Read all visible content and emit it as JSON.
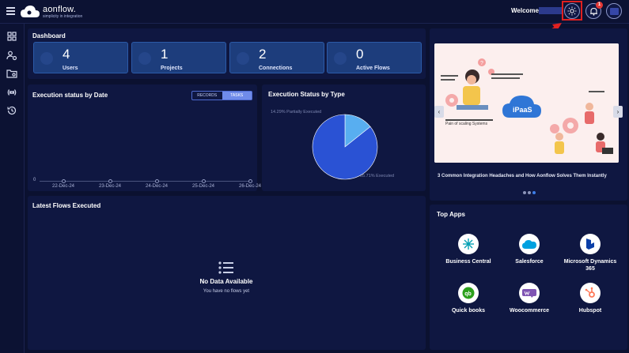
{
  "app": {
    "logo_name": "aonflow.",
    "logo_tagline": "simplicity in integration",
    "welcome": "Welcome",
    "notification_count": "1"
  },
  "dashboard": {
    "title": "Dashboard",
    "stats": [
      {
        "value": "4",
        "label": "Users",
        "icon": "users-icon"
      },
      {
        "value": "1",
        "label": "Projects",
        "icon": "folder-icon"
      },
      {
        "value": "2",
        "label": "Connections",
        "icon": "connection-icon"
      },
      {
        "value": "0",
        "label": "Active Flows",
        "icon": "shuffle-icon"
      }
    ]
  },
  "execution_by_date": {
    "title": "Execution status by Date",
    "toggle": [
      "RECORDS",
      "TASKS"
    ],
    "active_toggle": "TASKS",
    "zero_label": "0",
    "dates": [
      "22-Dec-24",
      "23-Dec-24",
      "24-Dec-24",
      "25-Dec-24",
      "26-Dec-24"
    ]
  },
  "execution_by_type": {
    "title": "Execution Status by Type",
    "labels": [
      "14.29% Partially Executed",
      "85.71% Executed"
    ]
  },
  "chart_data": [
    {
      "type": "line",
      "title": "Execution status by Date",
      "x": [
        "22-Dec-24",
        "23-Dec-24",
        "24-Dec-24",
        "25-Dec-24",
        "26-Dec-24"
      ],
      "series": [
        {
          "values": [
            0,
            0,
            0,
            0,
            0
          ]
        }
      ]
    },
    {
      "type": "pie",
      "title": "Execution Status by Type",
      "categories": [
        "Partially Executed",
        "Executed"
      ],
      "values": [
        14.29,
        85.71
      ],
      "colors": [
        "#58aef0",
        "#2a52d4"
      ]
    }
  ],
  "latest_flows": {
    "title": "Latest Flows Executed",
    "empty_title": "No Data Available",
    "empty_subtitle": "You have no flows yet"
  },
  "carousel": {
    "caption": "3 Common Integration Headaches and How Aonflow Solves Them Instantly",
    "image_texts": [
      "iPaaS",
      "Pain of scaling Systems"
    ],
    "dots": 3,
    "active_dot": 2
  },
  "top_apps": {
    "title": "Top Apps",
    "apps": [
      {
        "name": "Business Central",
        "icon": "business-central-icon",
        "color": "#0aa2b5"
      },
      {
        "name": "Salesforce",
        "icon": "salesforce-icon",
        "color": "#00a1e0"
      },
      {
        "name": "Microsoft Dynamics 365",
        "icon": "dynamics-365-icon",
        "color": "#0b3fa8"
      },
      {
        "name": "Quick books",
        "icon": "quickbooks-icon",
        "color": "#2ca01c"
      },
      {
        "name": "Woocommerce",
        "icon": "woocommerce-icon",
        "color": "#7f54b3"
      },
      {
        "name": "Hubspot",
        "icon": "hubspot-icon",
        "color": "#ff7a59"
      }
    ]
  }
}
